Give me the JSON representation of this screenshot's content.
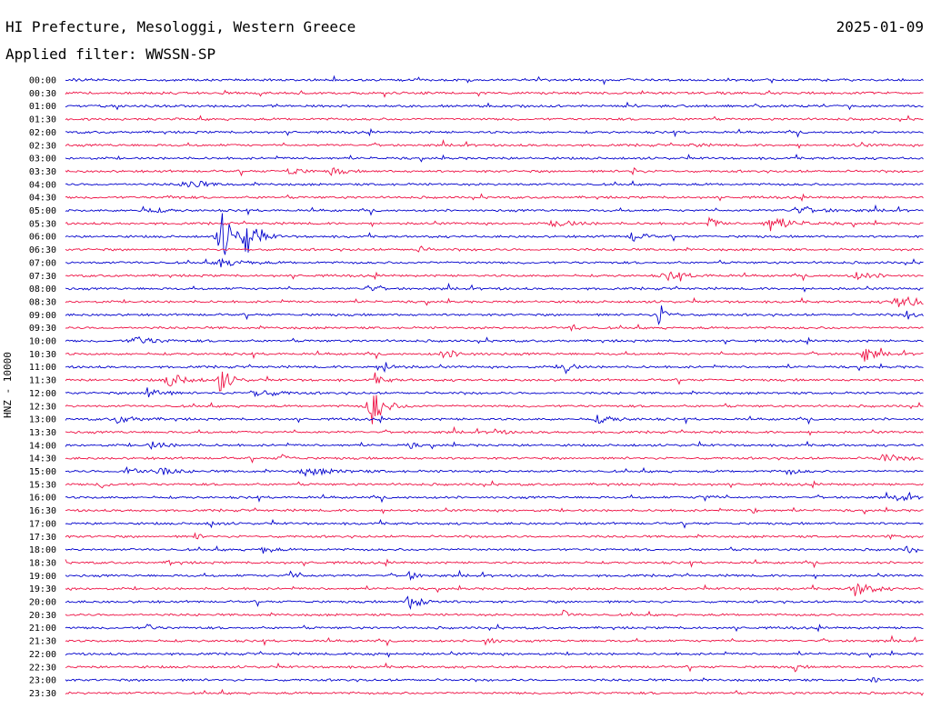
{
  "header": {
    "station": "HI Prefecture, Mesologgi, Western Greece",
    "date": "2025-01-09",
    "filter": "Applied filter: WWSSN-SP"
  },
  "axis_label": "HNZ - 10000",
  "colors": {
    "even": "#0000cc",
    "odd": "#ee1144"
  },
  "rows": [
    {
      "time": "00:00",
      "events": [
        {
          "t": 0.01,
          "a": 1,
          "w": 0.01
        }
      ]
    },
    {
      "time": "00:30",
      "events": [
        {
          "t": 0.76,
          "a": 2,
          "w": 0.006
        }
      ]
    },
    {
      "time": "01:00",
      "events": [
        {
          "t": 0.52,
          "a": 1,
          "w": 0.01
        }
      ]
    },
    {
      "time": "01:30",
      "events": []
    },
    {
      "time": "02:00",
      "events": []
    },
    {
      "time": "02:30",
      "events": [
        {
          "t": 0.73,
          "a": 2,
          "w": 0.01
        },
        {
          "t": 0.92,
          "a": 2,
          "w": 0.01
        }
      ]
    },
    {
      "time": "03:00",
      "events": []
    },
    {
      "time": "03:30",
      "events": [
        {
          "t": 0.26,
          "a": 6,
          "w": 0.01
        },
        {
          "t": 0.31,
          "a": 5,
          "w": 0.01
        },
        {
          "t": 0.66,
          "a": 5,
          "w": 0.006
        }
      ]
    },
    {
      "time": "04:00",
      "events": [
        {
          "t": 0.14,
          "a": 10,
          "w": 0.012
        }
      ]
    },
    {
      "time": "04:30",
      "events": [
        {
          "t": 0.12,
          "a": 2,
          "w": 0.01
        }
      ]
    },
    {
      "time": "05:00",
      "events": [
        {
          "t": 0.09,
          "a": 3,
          "w": 0.02
        },
        {
          "t": 0.85,
          "a": 3,
          "w": 0.03
        }
      ]
    },
    {
      "time": "05:30",
      "events": [
        {
          "t": 0.57,
          "a": 4,
          "w": 0.02
        },
        {
          "t": 0.75,
          "a": 7,
          "w": 0.008
        },
        {
          "t": 0.82,
          "a": 9,
          "w": 0.02
        }
      ]
    },
    {
      "time": "06:00",
      "events": [
        {
          "t": 0.18,
          "a": 34,
          "w": 0.012
        },
        {
          "t": 0.21,
          "a": 26,
          "w": 0.01
        },
        {
          "t": 0.66,
          "a": 7,
          "w": 0.01
        }
      ]
    },
    {
      "time": "06:30",
      "events": [
        {
          "t": 0.41,
          "a": 4,
          "w": 0.008
        }
      ]
    },
    {
      "time": "07:00",
      "events": [
        {
          "t": 0.18,
          "a": 5,
          "w": 0.02
        }
      ]
    },
    {
      "time": "07:30",
      "events": [
        {
          "t": 0.7,
          "a": 5,
          "w": 0.02
        },
        {
          "t": 0.92,
          "a": 4,
          "w": 0.02
        }
      ]
    },
    {
      "time": "08:00",
      "events": [
        {
          "t": 0.35,
          "a": 4,
          "w": 0.01
        }
      ]
    },
    {
      "time": "08:30",
      "events": [
        {
          "t": 0.97,
          "a": 6,
          "w": 0.03
        }
      ]
    },
    {
      "time": "09:00",
      "events": [
        {
          "t": 0.69,
          "a": 16,
          "w": 0.008
        },
        {
          "t": 0.98,
          "a": 5,
          "w": 0.01
        }
      ]
    },
    {
      "time": "09:30",
      "events": [
        {
          "t": 0.59,
          "a": 5,
          "w": 0.006
        }
      ]
    },
    {
      "time": "10:00",
      "events": [
        {
          "t": 0.08,
          "a": 5,
          "w": 0.02
        }
      ]
    },
    {
      "time": "10:30",
      "events": [
        {
          "t": 0.44,
          "a": 4,
          "w": 0.02
        },
        {
          "t": 0.93,
          "a": 10,
          "w": 0.01
        }
      ]
    },
    {
      "time": "11:00",
      "events": [
        {
          "t": 0.37,
          "a": 6,
          "w": 0.01
        },
        {
          "t": 0.58,
          "a": 14,
          "w": 0.006
        }
      ]
    },
    {
      "time": "11:30",
      "events": [
        {
          "t": 0.12,
          "a": 9,
          "w": 0.015
        },
        {
          "t": 0.18,
          "a": 16,
          "w": 0.01
        },
        {
          "t": 0.36,
          "a": 5,
          "w": 0.01
        }
      ]
    },
    {
      "time": "12:00",
      "events": [
        {
          "t": 0.095,
          "a": 14,
          "w": 0.01
        },
        {
          "t": 0.22,
          "a": 5,
          "w": 0.02
        }
      ]
    },
    {
      "time": "12:30",
      "events": [
        {
          "t": 0.355,
          "a": 26,
          "w": 0.012
        }
      ]
    },
    {
      "time": "13:00",
      "events": [
        {
          "t": 0.06,
          "a": 4,
          "w": 0.02
        },
        {
          "t": 0.62,
          "a": 4,
          "w": 0.02
        }
      ]
    },
    {
      "time": "13:30",
      "events": [
        {
          "t": 0.5,
          "a": 3,
          "w": 0.01
        }
      ]
    },
    {
      "time": "14:00",
      "events": [
        {
          "t": 0.1,
          "a": 4,
          "w": 0.015
        },
        {
          "t": 0.4,
          "a": 4,
          "w": 0.006
        }
      ]
    },
    {
      "time": "14:30",
      "events": [
        {
          "t": 0.25,
          "a": 5,
          "w": 0.008
        },
        {
          "t": 0.95,
          "a": 5,
          "w": 0.02
        }
      ]
    },
    {
      "time": "15:00",
      "events": [
        {
          "t": 0.07,
          "a": 6,
          "w": 0.015
        },
        {
          "t": 0.11,
          "a": 4,
          "w": 0.015
        },
        {
          "t": 0.28,
          "a": 4,
          "w": 0.03
        },
        {
          "t": 0.84,
          "a": 4,
          "w": 0.01
        }
      ]
    },
    {
      "time": "15:30",
      "events": [
        {
          "t": 0.04,
          "a": 4,
          "w": 0.01
        }
      ]
    },
    {
      "time": "16:00",
      "events": [
        {
          "t": 0.74,
          "a": 6,
          "w": 0.008
        },
        {
          "t": 0.97,
          "a": 5,
          "w": 0.01
        }
      ]
    },
    {
      "time": "16:30",
      "events": [
        {
          "t": 0.8,
          "a": 3,
          "w": 0.01
        }
      ]
    },
    {
      "time": "17:00",
      "events": [
        {
          "t": 0.17,
          "a": 4,
          "w": 0.006
        }
      ]
    },
    {
      "time": "17:30",
      "events": [
        {
          "t": 0.15,
          "a": 4,
          "w": 0.006
        },
        {
          "t": 0.96,
          "a": 4,
          "w": 0.006
        }
      ]
    },
    {
      "time": "18:00",
      "events": [
        {
          "t": 0.23,
          "a": 4,
          "w": 0.01
        },
        {
          "t": 0.98,
          "a": 6,
          "w": 0.006
        }
      ]
    },
    {
      "time": "18:30",
      "events": [
        {
          "t": 0.12,
          "a": 3,
          "w": 0.006
        }
      ]
    },
    {
      "time": "19:00",
      "events": [
        {
          "t": 0.26,
          "a": 5,
          "w": 0.01
        },
        {
          "t": 0.4,
          "a": 5,
          "w": 0.008
        }
      ]
    },
    {
      "time": "19:30",
      "events": [
        {
          "t": 0.92,
          "a": 9,
          "w": 0.015
        }
      ]
    },
    {
      "time": "20:00",
      "events": [
        {
          "t": 0.4,
          "a": 10,
          "w": 0.012
        }
      ]
    },
    {
      "time": "20:30",
      "events": [
        {
          "t": 0.58,
          "a": 5,
          "w": 0.006
        }
      ]
    },
    {
      "time": "21:00",
      "events": [
        {
          "t": 0.095,
          "a": 5,
          "w": 0.006
        }
      ]
    },
    {
      "time": "21:30",
      "events": [
        {
          "t": 0.49,
          "a": 5,
          "w": 0.008
        }
      ]
    },
    {
      "time": "22:00",
      "events": [
        {
          "t": 0.35,
          "a": 6,
          "w": 0.006
        }
      ]
    },
    {
      "time": "22:30",
      "events": [
        {
          "t": 0.85,
          "a": 4,
          "w": 0.006
        },
        {
          "t": 0.99,
          "a": 4,
          "w": 0.006
        }
      ]
    },
    {
      "time": "23:00",
      "events": [
        {
          "t": 0.94,
          "a": 3,
          "w": 0.006
        }
      ]
    },
    {
      "time": "23:30",
      "events": []
    }
  ]
}
